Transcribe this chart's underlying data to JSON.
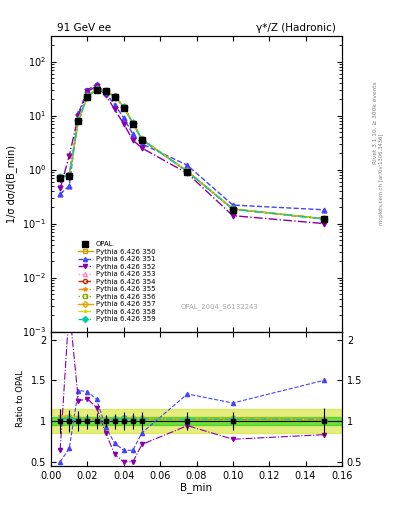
{
  "title_left": "91 GeV ee",
  "title_right": "γ*/Z (Hadronic)",
  "ylabel_main": "1/σ dσ/d(B_min)",
  "ylabel_ratio": "Ratio to OPAL",
  "xlabel": "B_min",
  "watermark": "OPAL_2004_S6132243",
  "right_label": "Rivet 3.1.10, ≥ 300k events",
  "right_label2": "mcplots.cern.ch [arXiv:1306.3436]",
  "xvals": [
    0.005,
    0.01,
    0.015,
    0.02,
    0.025,
    0.03,
    0.035,
    0.04,
    0.045,
    0.05,
    0.075,
    0.1,
    0.15
  ],
  "opal_y": [
    0.7,
    0.75,
    8.0,
    22.0,
    30.0,
    28.0,
    22.0,
    14.0,
    7.0,
    3.5,
    0.9,
    0.18,
    0.12
  ],
  "opal_yerr": [
    0.1,
    0.1,
    1.0,
    2.0,
    3.0,
    2.0,
    2.0,
    1.5,
    0.7,
    0.4,
    0.1,
    0.02,
    0.02
  ],
  "series": [
    {
      "label": "Pythia 6.426 350",
      "color": "#c8a000",
      "linestyle": "-",
      "marker": "s",
      "fillstyle": "none",
      "y": [
        0.72,
        0.78,
        8.2,
        22.5,
        30.5,
        28.5,
        22.5,
        14.5,
        7.2,
        3.6,
        0.92,
        0.185,
        0.122
      ]
    },
    {
      "label": "Pythia 6.426 351",
      "color": "#4444ff",
      "linestyle": "--",
      "marker": "^",
      "fillstyle": "full",
      "y": [
        0.35,
        0.5,
        11.0,
        30.0,
        38.0,
        26.0,
        16.0,
        9.0,
        4.5,
        3.0,
        1.2,
        0.22,
        0.18
      ]
    },
    {
      "label": "Pythia 6.426 352",
      "color": "#8800aa",
      "linestyle": "-.",
      "marker": "v",
      "fillstyle": "full",
      "y": [
        0.45,
        1.8,
        10.0,
        28.0,
        35.0,
        24.0,
        13.0,
        7.0,
        3.5,
        2.5,
        0.85,
        0.14,
        0.1
      ]
    },
    {
      "label": "Pythia 6.426 353",
      "color": "#ff88cc",
      "linestyle": ":",
      "marker": "^",
      "fillstyle": "none",
      "y": [
        0.73,
        0.79,
        8.3,
        22.6,
        30.6,
        28.6,
        22.6,
        14.6,
        7.25,
        3.62,
        0.925,
        0.186,
        0.123
      ]
    },
    {
      "label": "Pythia 6.426 354",
      "color": "#cc2200",
      "linestyle": "--",
      "marker": "o",
      "fillstyle": "none",
      "y": [
        0.73,
        0.79,
        8.25,
        22.55,
        30.55,
        28.55,
        22.55,
        14.55,
        7.22,
        3.61,
        0.922,
        0.185,
        0.122
      ]
    },
    {
      "label": "Pythia 6.426 355",
      "color": "#ff8800",
      "linestyle": "-.",
      "marker": "*",
      "fillstyle": "full",
      "y": [
        0.74,
        0.8,
        8.35,
        22.65,
        30.65,
        28.65,
        22.65,
        14.65,
        7.28,
        3.63,
        0.928,
        0.187,
        0.124
      ]
    },
    {
      "label": "Pythia 6.426 356",
      "color": "#88aa00",
      "linestyle": ":",
      "marker": "s",
      "fillstyle": "none",
      "y": [
        0.72,
        0.78,
        8.2,
        22.5,
        30.5,
        28.5,
        22.5,
        14.5,
        7.2,
        3.6,
        0.92,
        0.185,
        0.122
      ]
    },
    {
      "label": "Pythia 6.426 357",
      "color": "#ddaa00",
      "linestyle": "-",
      "marker": "D",
      "fillstyle": "none",
      "y": [
        0.73,
        0.79,
        8.3,
        22.6,
        30.6,
        28.6,
        22.6,
        14.6,
        7.25,
        3.62,
        0.925,
        0.186,
        0.123
      ]
    },
    {
      "label": "Pythia 6.426 358",
      "color": "#ccdd00",
      "linestyle": "--",
      "marker": ".",
      "fillstyle": "full",
      "y": [
        0.73,
        0.8,
        8.28,
        22.58,
        30.58,
        28.58,
        22.58,
        14.58,
        7.23,
        3.61,
        0.923,
        0.186,
        0.122
      ]
    },
    {
      "label": "Pythia 6.426 359",
      "color": "#00ccaa",
      "linestyle": "-.",
      "marker": "D",
      "fillstyle": "full",
      "y": [
        0.72,
        0.78,
        8.2,
        22.5,
        30.5,
        28.5,
        22.5,
        14.5,
        7.2,
        3.6,
        0.92,
        0.185,
        0.122
      ]
    }
  ],
  "xlim": [
    0.0,
    0.16
  ],
  "ylim_main": [
    0.001,
    300
  ],
  "ylim_ratio": [
    0.45,
    2.1
  ],
  "ratio_band_color_inner": "#00cc00",
  "ratio_band_color_outer": "#ccdd00",
  "ratio_band_alpha_inner": 0.5,
  "ratio_band_alpha_outer": 0.5,
  "ratio_band_inner": 0.05,
  "ratio_band_outer": 0.15
}
